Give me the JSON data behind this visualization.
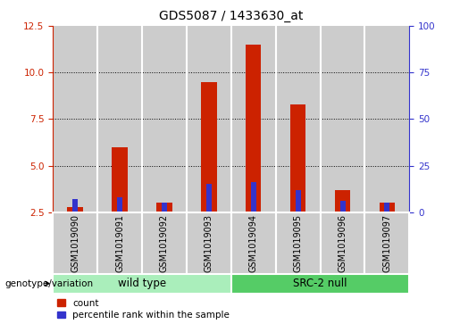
{
  "title": "GDS5087 / 1433630_at",
  "samples": [
    "GSM1019090",
    "GSM1019091",
    "GSM1019092",
    "GSM1019093",
    "GSM1019094",
    "GSM1019095",
    "GSM1019096",
    "GSM1019097"
  ],
  "count_values": [
    2.8,
    6.0,
    3.0,
    9.5,
    11.5,
    8.3,
    3.7,
    3.0
  ],
  "percentile_values": [
    3.2,
    3.3,
    3.0,
    4.0,
    4.1,
    3.7,
    3.1,
    3.0
  ],
  "ylim_left": [
    2.5,
    12.5
  ],
  "ylim_right": [
    0,
    100
  ],
  "yticks_left": [
    2.5,
    5.0,
    7.5,
    10.0,
    12.5
  ],
  "yticks_right": [
    0,
    25,
    50,
    75,
    100
  ],
  "bar_color": "#cc2200",
  "percentile_color": "#3333cc",
  "bar_bg_color": "#cccccc",
  "group_color_light": "#aaeebb",
  "group_color_dark": "#55cc66",
  "group1_label": "wild type",
  "group2_label": "SRC-2 null",
  "group1_indices": [
    0,
    1,
    2,
    3
  ],
  "group2_indices": [
    4,
    5,
    6,
    7
  ],
  "genotype_label": "genotype/variation",
  "legend_count": "count",
  "legend_percentile": "percentile rank within the sample",
  "bar_width": 0.35,
  "percentile_bar_width": 0.12,
  "baseline": 2.5,
  "grid_ticks": [
    5.0,
    7.5,
    10.0
  ]
}
